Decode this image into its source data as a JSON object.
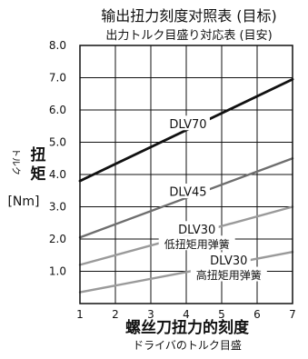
{
  "chart_data": {
    "type": "line",
    "title": "输出扭力刻度对照表 (目标)",
    "subtitle": "出力トルク目盛り対応表 (目安)",
    "xlabel": "螺丝刀扭力的刻度",
    "xlabel_sub": "ドライバのトルク目盛",
    "ylabel": "扭矩",
    "ylabel_sub": "トルク",
    "yunit": "[Nm]",
    "xlim": [
      1,
      7
    ],
    "ylim": [
      0,
      8
    ],
    "x_ticks": [
      "1",
      "2",
      "3",
      "4",
      "5",
      "6",
      "7"
    ],
    "y_ticks": [
      "1.0",
      "2.0",
      "3.0",
      "4.0",
      "5.0",
      "6.0",
      "7.0",
      "8.0"
    ],
    "grid": true,
    "x": [
      1,
      7
    ],
    "series": [
      {
        "name": "DLV70",
        "values": [
          3.8,
          6.95
        ],
        "color": "#111111"
      },
      {
        "name": "DLV45",
        "values": [
          2.05,
          4.5
        ],
        "color": "#6e6e6e"
      },
      {
        "name": "DLV30",
        "note": "低扭矩用弹簧",
        "values": [
          1.2,
          3.0
        ],
        "color": "#9a9a9a"
      },
      {
        "name": "DLV30",
        "note": "高扭矩用弹簧",
        "values": [
          0.35,
          1.6
        ],
        "color": "#9a9a9a"
      }
    ]
  }
}
